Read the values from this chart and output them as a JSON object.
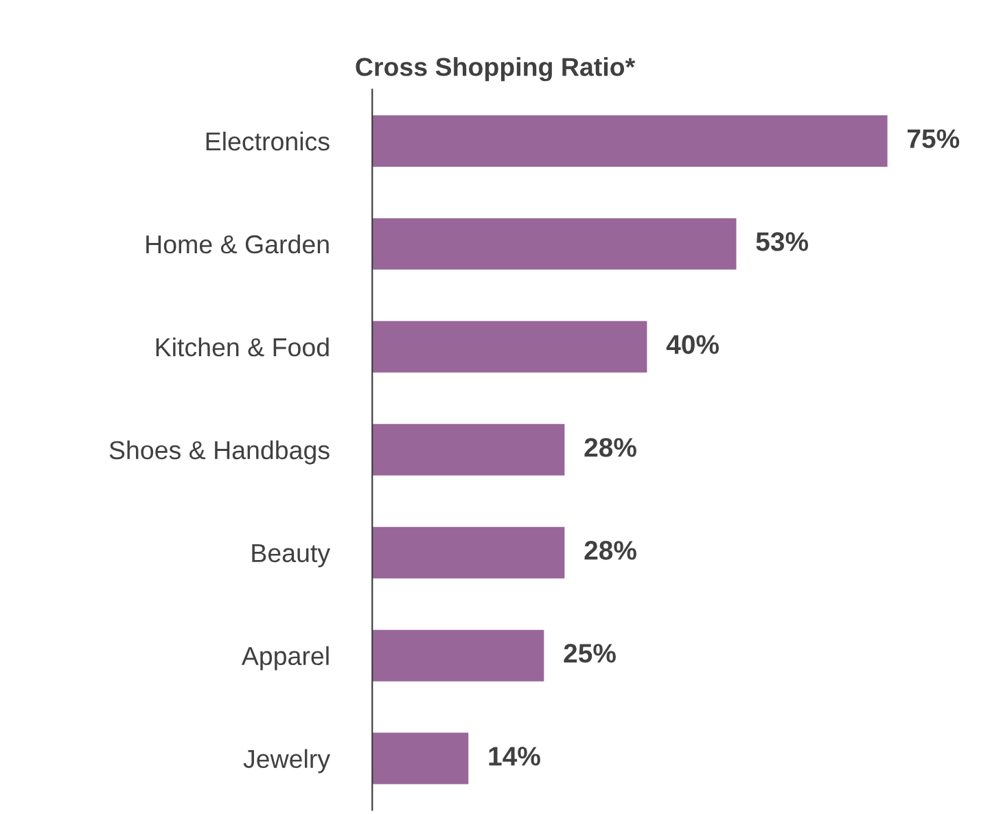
{
  "chart_data": {
    "type": "bar",
    "orientation": "horizontal",
    "title": "Cross Shopping Ratio*",
    "categories": [
      "Electronics",
      "Home & Garden",
      "Kitchen & Food",
      "Shoes & Handbags",
      "Beauty",
      "Apparel",
      "Jewelry"
    ],
    "values": [
      75,
      53,
      40,
      28,
      28,
      25,
      14
    ],
    "value_labels": [
      "75%",
      "53%",
      "40%",
      "28%",
      "28%",
      "25%",
      "14%"
    ],
    "color": "#996699",
    "grid": false,
    "legend": false
  }
}
